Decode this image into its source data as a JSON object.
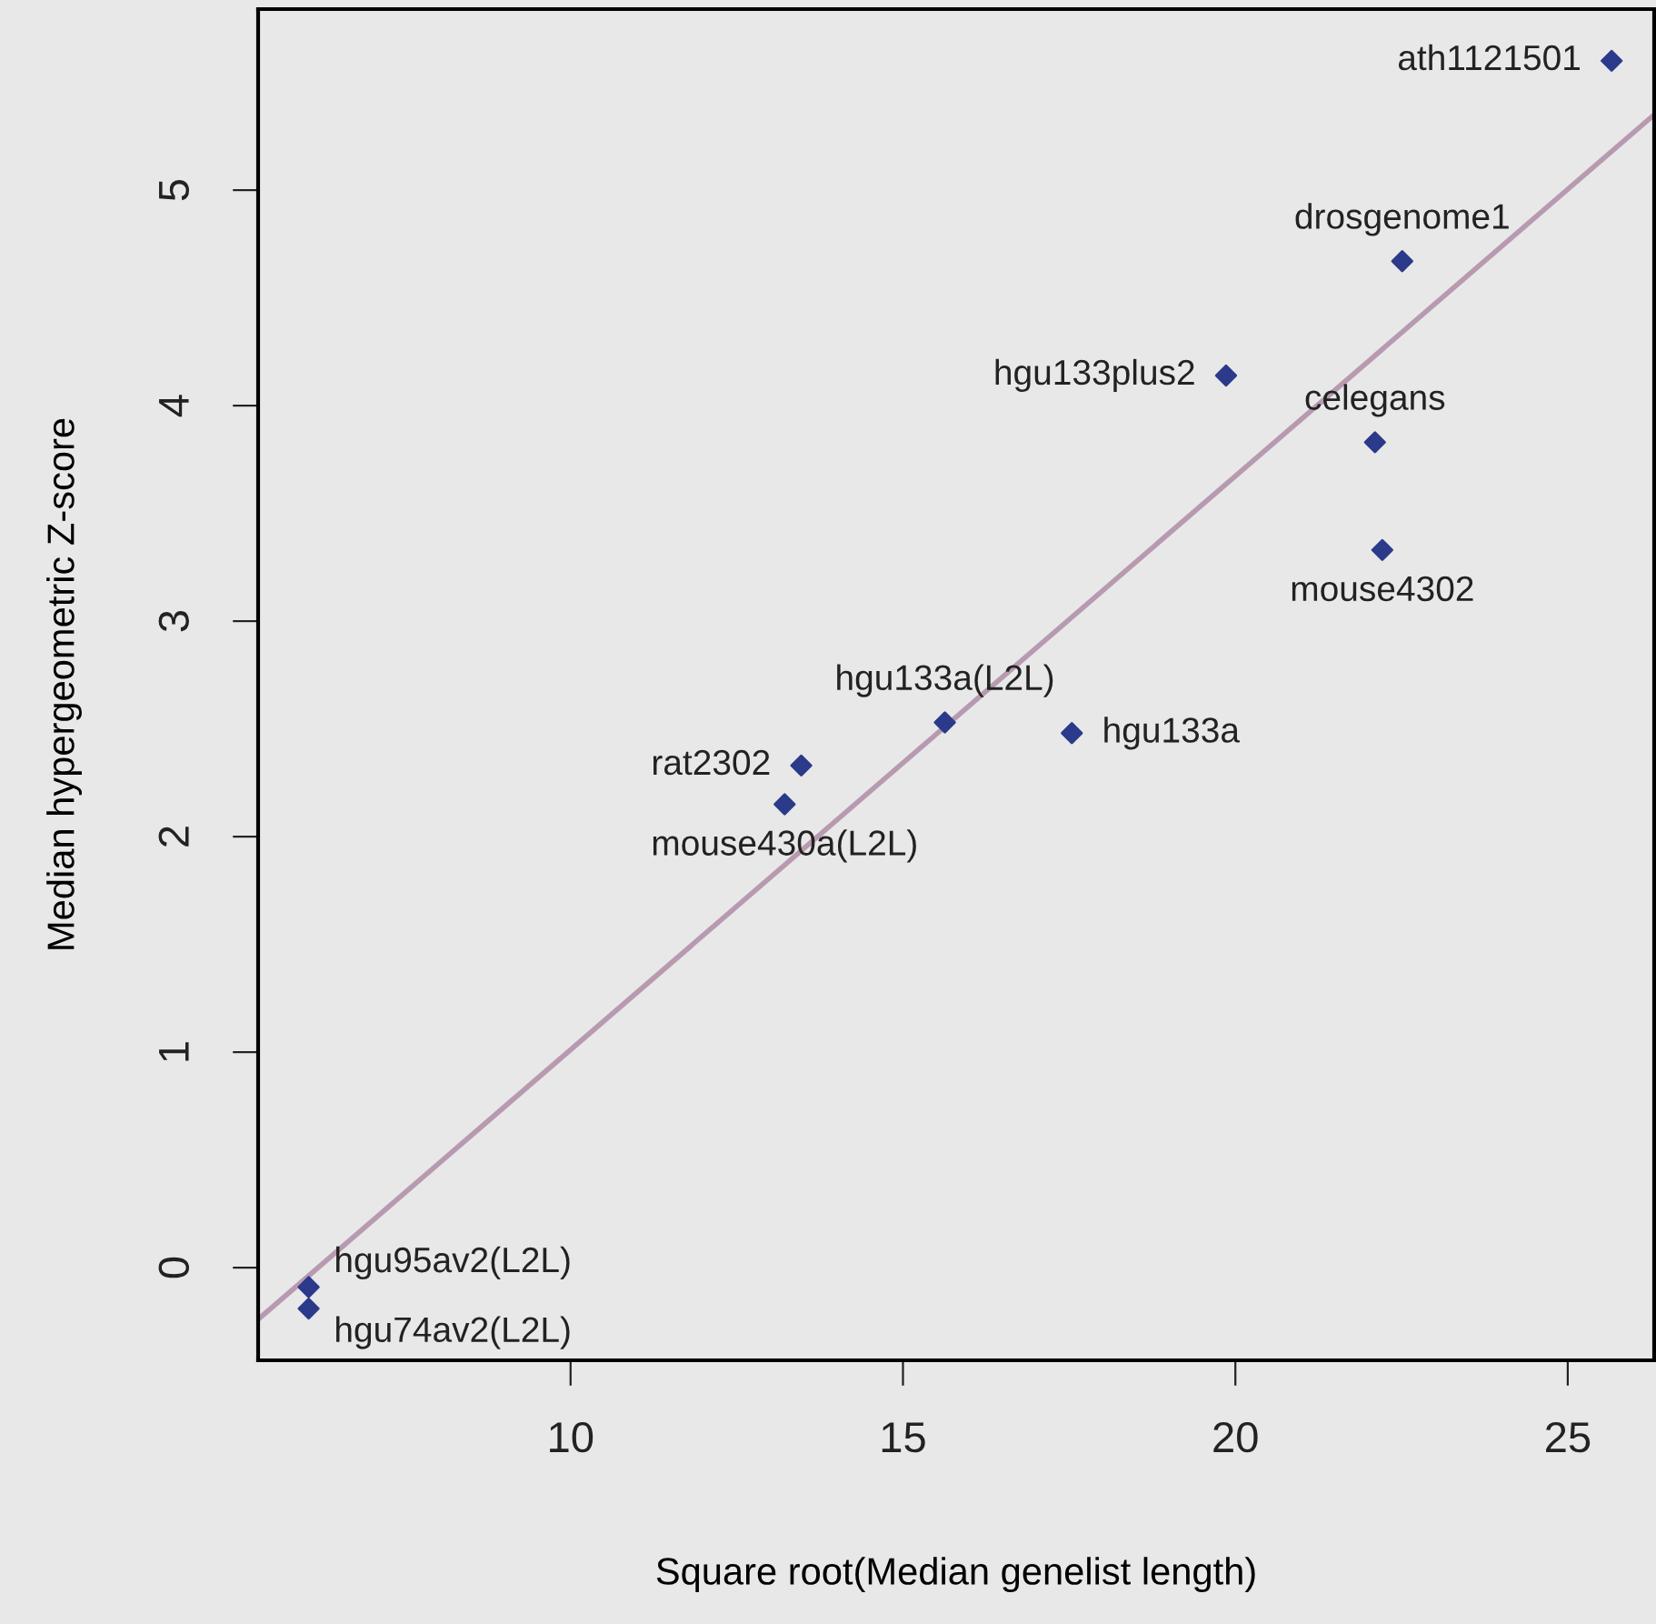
{
  "chart_data": {
    "type": "scatter",
    "xlabel": "Square root(Median genelist length)",
    "ylabel": "Median hypergeometric Z-score",
    "xlim": [
      5.3,
      26.3
    ],
    "ylim": [
      -0.43,
      5.84
    ],
    "xticks": [
      10,
      15,
      20,
      25
    ],
    "yticks": [
      0,
      1,
      2,
      3,
      4,
      5
    ],
    "grid": false,
    "legend": false,
    "marker": "diamond",
    "series": [
      {
        "color": "#2b3a8a",
        "x": [
          25.66,
          22.51,
          19.86,
          22.1,
          22.21,
          15.63,
          17.54,
          13.47,
          13.22,
          6.06,
          6.06
        ],
        "values": [
          5.6,
          4.67,
          4.14,
          3.83,
          3.33,
          2.53,
          2.48,
          2.33,
          2.15,
          -0.09,
          -0.19
        ]
      },
      {
        "type": "line",
        "color": "#b89ab0",
        "line_style": "solid",
        "marker": "none",
        "x": [
          5.3,
          26.3
        ],
        "values": [
          -0.24,
          5.35
        ]
      }
    ],
    "annotations": [
      {
        "text": "ath1121501",
        "x": 25.66,
        "y": 5.6
      },
      {
        "text": "drosgenome1",
        "x": 22.51,
        "y": 4.67
      },
      {
        "text": "hgu133plus2",
        "x": 19.86,
        "y": 4.14
      },
      {
        "text": "celegans",
        "x": 22.1,
        "y": 3.83
      },
      {
        "text": "mouse4302",
        "x": 22.21,
        "y": 3.33
      },
      {
        "text": "hgu133a(L2L)",
        "x": 15.63,
        "y": 2.53
      },
      {
        "text": "hgu133a",
        "x": 17.54,
        "y": 2.48
      },
      {
        "text": "rat2302",
        "x": 13.47,
        "y": 2.33
      },
      {
        "text": "mouse430a(L2L)",
        "x": 13.22,
        "y": 2.15
      },
      {
        "text": "hgu95av2(L2L)",
        "x": 6.06,
        "y": -0.09
      },
      {
        "text": "hgu74av2(L2L)",
        "x": 6.06,
        "y": -0.19
      }
    ]
  }
}
